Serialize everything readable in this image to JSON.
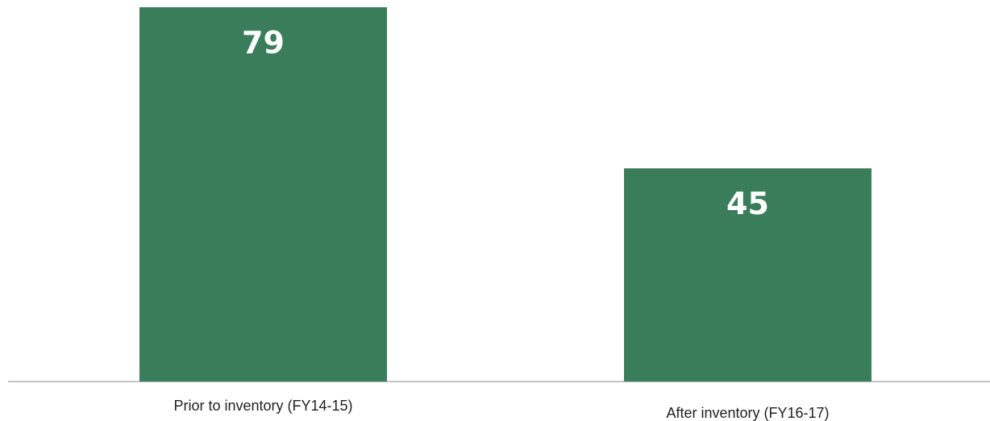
{
  "chart_data": {
    "type": "bar",
    "categories": [
      "Prior to inventory (FY14-15)",
      "After inventory (FY16-17)"
    ],
    "values": [
      79,
      45
    ],
    "value_labels": [
      "79",
      "45"
    ],
    "title": "",
    "xlabel": "",
    "ylabel": "",
    "ylim": [
      0,
      79
    ],
    "grid": false,
    "legend": "none",
    "colors": {
      "bar": "#3a7d5a",
      "value_label": "#ffffff",
      "axis": "#888888",
      "category_label": "#222222"
    }
  }
}
